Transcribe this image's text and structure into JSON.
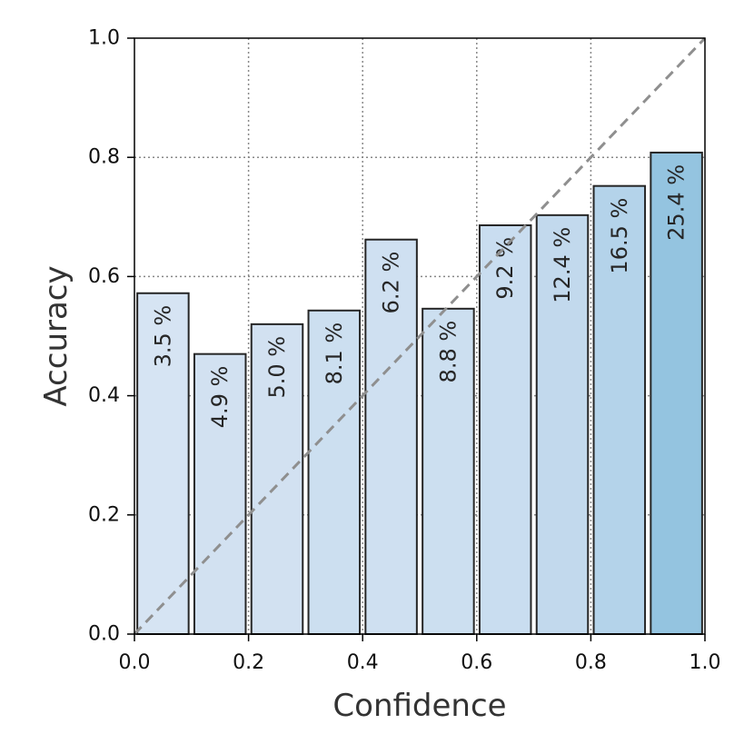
{
  "chart_data": {
    "type": "bar",
    "xlabel": "Confidence",
    "ylabel": "Accuracy",
    "xlim": [
      0.0,
      1.0
    ],
    "ylim": [
      0.0,
      1.0
    ],
    "xticks": [
      "0.0",
      "0.2",
      "0.4",
      "0.6",
      "0.8",
      "1.0"
    ],
    "yticks": [
      "0.0",
      "0.2",
      "0.4",
      "0.6",
      "0.8",
      "1.0"
    ],
    "grid": true,
    "reference_line": "y = x",
    "bin_width": 0.1,
    "bins": [
      {
        "x_start": 0.0,
        "accuracy": 0.572,
        "label": "3.5 %",
        "color": "#d6e4f3"
      },
      {
        "x_start": 0.1,
        "accuracy": 0.47,
        "label": "4.9 %",
        "color": "#d2e1f1"
      },
      {
        "x_start": 0.2,
        "accuracy": 0.52,
        "label": "5.0 %",
        "color": "#d2e1f1"
      },
      {
        "x_start": 0.3,
        "accuracy": 0.543,
        "label": "8.1 %",
        "color": "#ccdff0"
      },
      {
        "x_start": 0.4,
        "accuracy": 0.662,
        "label": "6.2 %",
        "color": "#cfe0f1"
      },
      {
        "x_start": 0.5,
        "accuracy": 0.546,
        "label": "8.8 %",
        "color": "#ccdff0"
      },
      {
        "x_start": 0.6,
        "accuracy": 0.686,
        "label": "9.2 %",
        "color": "#c9ddf0"
      },
      {
        "x_start": 0.7,
        "accuracy": 0.703,
        "label": "12.4 %",
        "color": "#c2d9ed"
      },
      {
        "x_start": 0.8,
        "accuracy": 0.752,
        "label": "16.5 %",
        "color": "#b4d3ea"
      },
      {
        "x_start": 0.9,
        "accuracy": 0.808,
        "label": "25.4 %",
        "color": "#94c4e0"
      }
    ]
  }
}
